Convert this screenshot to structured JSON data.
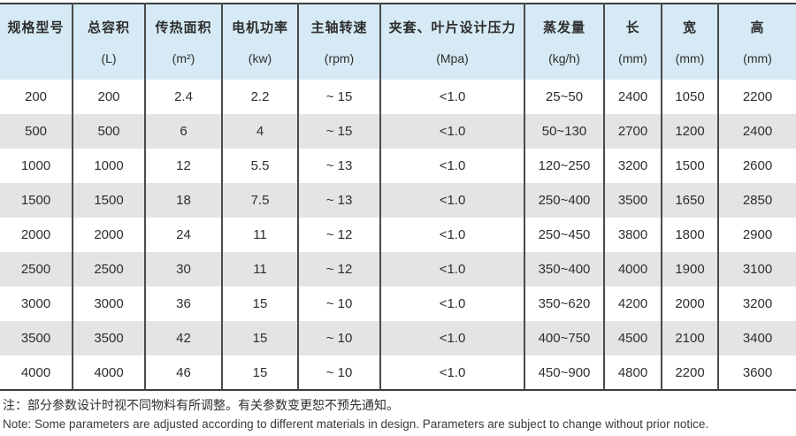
{
  "table": {
    "columns": [
      {
        "title": "规格型号",
        "unit": ""
      },
      {
        "title": "总容积",
        "unit": "(L)"
      },
      {
        "title": "传热面积",
        "unit": "(m²)"
      },
      {
        "title": "电机功率",
        "unit": "(kw)"
      },
      {
        "title": "主轴转速",
        "unit": "(rpm)"
      },
      {
        "title": "夹套、叶片设计压力",
        "unit": "(Mpa)"
      },
      {
        "title": "蒸发量",
        "unit": "(kg/h)"
      },
      {
        "title": "长",
        "unit": "(mm)"
      },
      {
        "title": "宽",
        "unit": "(mm)"
      },
      {
        "title": "高",
        "unit": "(mm)"
      }
    ],
    "rows": [
      [
        "200",
        "200",
        "2.4",
        "2.2",
        "~ 15",
        "<1.0",
        "25~50",
        "2400",
        "1050",
        "2200"
      ],
      [
        "500",
        "500",
        "6",
        "4",
        "~ 15",
        "<1.0",
        "50~130",
        "2700",
        "1200",
        "2400"
      ],
      [
        "1000",
        "1000",
        "12",
        "5.5",
        "~ 13",
        "<1.0",
        "120~250",
        "3200",
        "1500",
        "2600"
      ],
      [
        "1500",
        "1500",
        "18",
        "7.5",
        "~ 13",
        "<1.0",
        "250~400",
        "3500",
        "1650",
        "2850"
      ],
      [
        "2000",
        "2000",
        "24",
        "11",
        "~ 12",
        "<1.0",
        "250~450",
        "3800",
        "1800",
        "2900"
      ],
      [
        "2500",
        "2500",
        "30",
        "11",
        "~ 12",
        "<1.0",
        "350~400",
        "4000",
        "1900",
        "3100"
      ],
      [
        "3000",
        "3000",
        "36",
        "15",
        "~ 10",
        "<1.0",
        "350~620",
        "4200",
        "2000",
        "3200"
      ],
      [
        "3500",
        "3500",
        "42",
        "15",
        "~ 10",
        "<1.0",
        "400~750",
        "4500",
        "2100",
        "3400"
      ],
      [
        "4000",
        "4000",
        "46",
        "15",
        "~ 10",
        "<1.0",
        "450~900",
        "4800",
        "2200",
        "3600"
      ]
    ]
  },
  "notes": {
    "zh": "注：部分参数设计时视不同物料有所调整。有关参数变更恕不预先通知。",
    "en": "Note: Some parameters are adjusted according to different materials in design. Parameters are subject to change without prior notice."
  },
  "colors": {
    "header_bg": "#d5eaf4",
    "stripe_bg": "#e4e4e4",
    "border": "#4a4a4a",
    "text": "#2e2e2e"
  }
}
